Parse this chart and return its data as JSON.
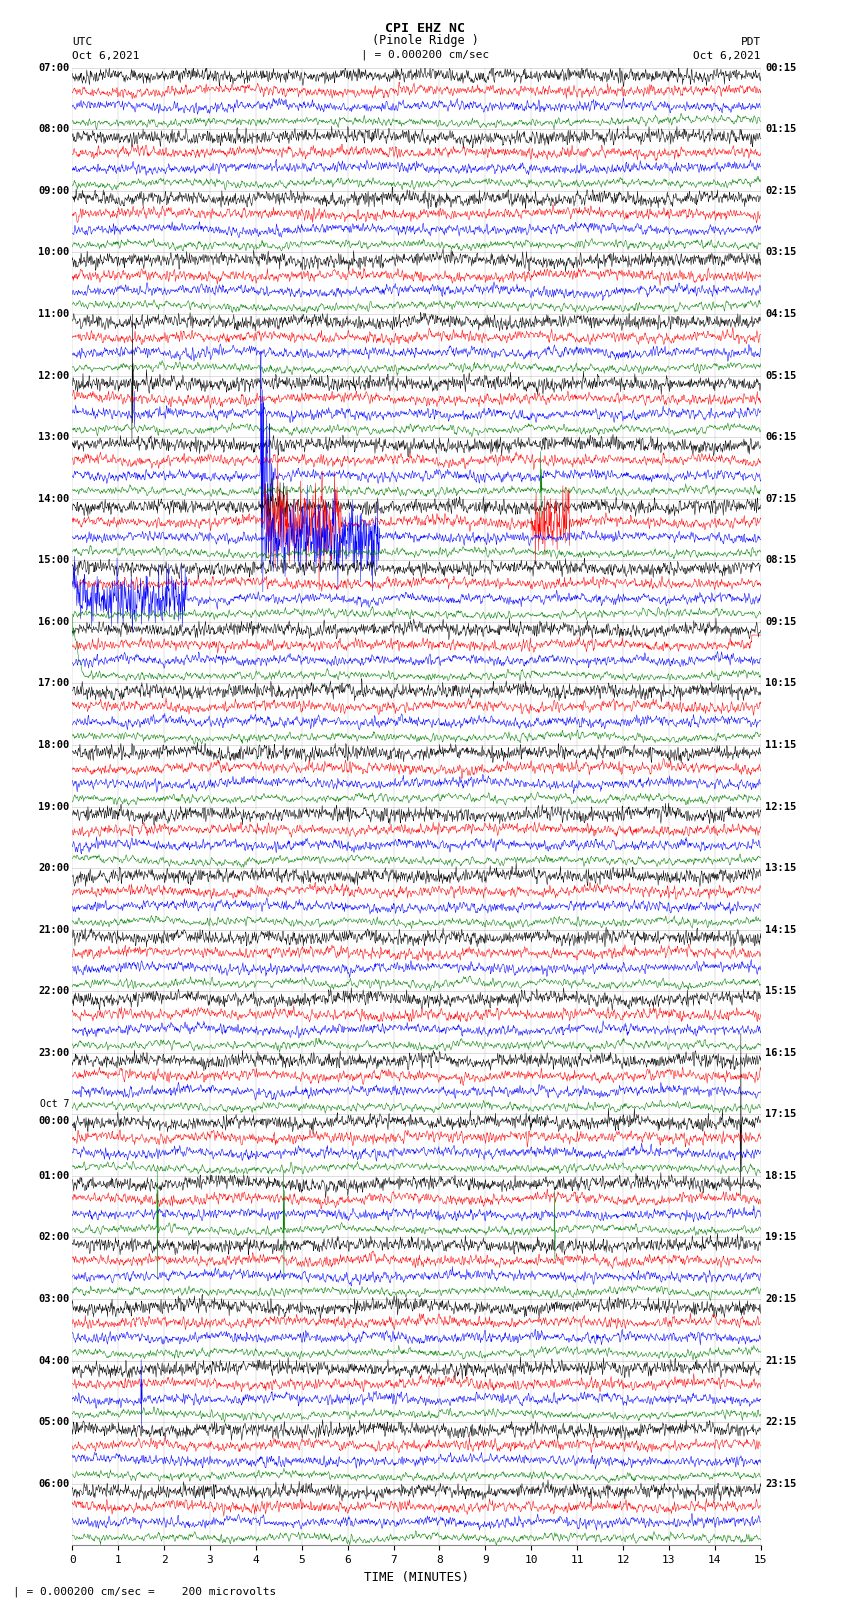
{
  "title_line1": "CPI EHZ NC",
  "title_line2": "(Pinole Ridge )",
  "scale_label": "| = 0.000200 cm/sec",
  "footer_label": "| = 0.000200 cm/sec =    200 microvolts",
  "utc_label": "UTC",
  "utc_date": "Oct 6,2021",
  "pdt_label": "PDT",
  "pdt_date": "Oct 6,2021",
  "xlabel": "TIME (MINUTES)",
  "background_color": "#ffffff",
  "trace_colors": [
    "#000000",
    "#ff0000",
    "#0000ff",
    "#008000"
  ],
  "left_times_utc": [
    "07:00",
    "08:00",
    "09:00",
    "10:00",
    "11:00",
    "12:00",
    "13:00",
    "14:00",
    "15:00",
    "16:00",
    "17:00",
    "18:00",
    "19:00",
    "20:00",
    "21:00",
    "22:00",
    "23:00",
    "Oct 7|00:00",
    "01:00",
    "02:00",
    "03:00",
    "04:00",
    "05:00",
    "06:00"
  ],
  "right_times_pdt": [
    "00:15",
    "01:15",
    "02:15",
    "03:15",
    "04:15",
    "05:15",
    "06:15",
    "07:15",
    "08:15",
    "09:15",
    "10:15",
    "11:15",
    "12:15",
    "13:15",
    "14:15",
    "15:15",
    "16:15",
    "17:15",
    "18:15",
    "19:15",
    "20:15",
    "21:15",
    "22:15",
    "23:15"
  ],
  "n_rows": 24,
  "traces_per_row": 4,
  "xmin": 0,
  "xmax": 15,
  "xticks": [
    0,
    1,
    2,
    3,
    4,
    5,
    6,
    7,
    8,
    9,
    10,
    11,
    12,
    13,
    14,
    15
  ],
  "fig_width": 8.5,
  "fig_height": 16.13,
  "dpi": 100
}
